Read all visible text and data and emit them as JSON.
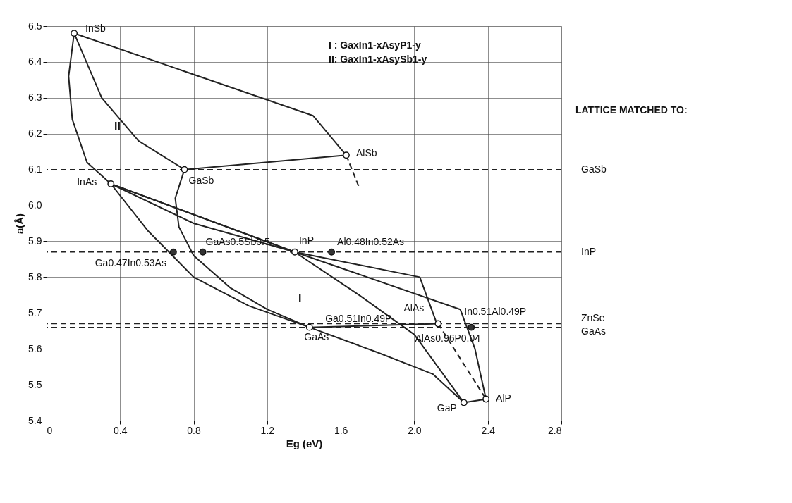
{
  "chart_data": {
    "type": "scatter",
    "xlabel": "Eg (eV)",
    "ylabel": "a(Å)",
    "xlim": [
      0,
      2.8
    ],
    "xticks": [
      0,
      0.4,
      0.8,
      1.2,
      1.6,
      {
        "value": 2.0,
        "label": "2.0"
      },
      2.4,
      2.8
    ],
    "ylim": [
      5.4,
      6.5
    ],
    "yticks": [
      5.4,
      5.5,
      5.6,
      5.7,
      5.8,
      5.9,
      {
        "value": 6.0,
        "label": "6.0"
      },
      6.1,
      6.2,
      6.3,
      6.4,
      6.5
    ],
    "grid": true,
    "series": [
      {
        "type": "line",
        "color": "#222222",
        "x": [
          0.15,
          1.45,
          1.63
        ],
        "values": [
          6.48,
          6.25,
          6.14
        ]
      },
      {
        "type": "line",
        "color": "#222222",
        "x": [
          0.75,
          1.63
        ],
        "values": [
          6.1,
          6.14
        ]
      },
      {
        "type": "line",
        "color": "#222222",
        "line_style": "dashed",
        "x": [
          1.63,
          1.7
        ],
        "values": [
          6.14,
          6.05
        ]
      },
      {
        "type": "line",
        "color": "#222222",
        "x": [
          0.15,
          0.3,
          0.5,
          0.75
        ],
        "values": [
          6.48,
          6.3,
          6.18,
          6.1
        ]
      },
      {
        "type": "line",
        "color": "#222222",
        "x": [
          0.15,
          0.12,
          0.14,
          0.22,
          0.35
        ],
        "values": [
          6.48,
          6.36,
          6.24,
          6.12,
          6.06
        ]
      },
      {
        "type": "line",
        "color": "#222222",
        "x": [
          0.75,
          0.7,
          0.72,
          0.8,
          1.0,
          1.2,
          1.43
        ],
        "values": [
          6.1,
          6.02,
          5.94,
          5.86,
          5.77,
          5.71,
          5.66
        ]
      },
      {
        "type": "line",
        "color": "#222222",
        "x": [
          0.35,
          0.55,
          0.8,
          1.1,
          1.43
        ],
        "values": [
          6.06,
          5.93,
          5.8,
          5.72,
          5.66
        ]
      },
      {
        "type": "line",
        "color": "#222222",
        "x": [
          0.35,
          1.35,
          2.03,
          2.13
        ],
        "values": [
          6.06,
          5.87,
          5.8,
          5.66
        ]
      },
      {
        "type": "line",
        "color": "#222222",
        "x": [
          0.35,
          1.35,
          2.25,
          2.33,
          2.39
        ],
        "values": [
          6.06,
          5.87,
          5.71,
          5.6,
          5.46
        ]
      },
      {
        "type": "line",
        "color": "#222222",
        "x": [
          0.35,
          0.8,
          1.35
        ],
        "values": [
          6.06,
          5.95,
          5.87
        ]
      },
      {
        "type": "line",
        "color": "#222222",
        "x": [
          1.35,
          1.7,
          2.0,
          2.27
        ],
        "values": [
          5.87,
          5.75,
          5.64,
          5.45
        ]
      },
      {
        "type": "line",
        "color": "#222222",
        "x": [
          1.43,
          1.8,
          2.1,
          2.27
        ],
        "values": [
          5.66,
          5.59,
          5.53,
          5.45
        ]
      },
      {
        "type": "line",
        "color": "#222222",
        "x": [
          1.43,
          2.13
        ],
        "values": [
          5.66,
          5.67
        ]
      },
      {
        "type": "line",
        "color": "#222222",
        "line_style": "dashed",
        "x": [
          2.13,
          2.39
        ],
        "values": [
          5.67,
          5.46
        ]
      },
      {
        "type": "line",
        "color": "#222222",
        "x": [
          2.27,
          2.39
        ],
        "values": [
          5.45,
          5.46
        ]
      },
      {
        "color": "#ffffff",
        "marker": "circle",
        "x": [
          0.15,
          1.63,
          0.75,
          0.35,
          1.43,
          2.13,
          2.27,
          2.39,
          1.35
        ],
        "values": [
          6.48,
          6.14,
          6.1,
          6.06,
          5.66,
          5.67,
          5.45,
          5.46,
          5.87
        ]
      },
      {
        "color": "#333333",
        "marker": "circle",
        "x": [
          0.69,
          0.85,
          1.55,
          2.31
        ],
        "values": [
          5.87,
          5.87,
          5.87,
          5.66
        ]
      }
    ],
    "ref_lines": [
      {
        "axis": "y",
        "value": 6.1,
        "label": "GaSb",
        "line_style": "dashed"
      },
      {
        "axis": "y",
        "value": 5.87,
        "label": "InP",
        "line_style": "dashed"
      },
      {
        "axis": "y",
        "value": 5.67,
        "label": "ZnSe",
        "line_style": "dashed"
      },
      {
        "axis": "y",
        "value": 5.66,
        "label": "GaAs",
        "line_style": "dashed"
      }
    ],
    "annotations": [
      {
        "text": "InSb",
        "x": 0.15,
        "y": 6.48
      },
      {
        "text": "AlSb",
        "x": 1.63,
        "y": 6.14
      },
      {
        "text": "GaSb",
        "x": 0.75,
        "y": 6.1
      },
      {
        "text": "InAs",
        "x": 0.35,
        "y": 6.06
      },
      {
        "text": "GaAs0.5Sb0.5",
        "x": 0.85,
        "y": 5.87
      },
      {
        "text": "InP",
        "x": 1.35,
        "y": 5.87
      },
      {
        "text": "Al0.48In0.52As",
        "x": 1.55,
        "y": 5.87
      },
      {
        "text": "Ga0.47In0.53As",
        "x": 0.69,
        "y": 5.87
      },
      {
        "text": "In0.51Al0.49P",
        "x": 2.31,
        "y": 5.66
      },
      {
        "text": "AlAs",
        "x": 2.13,
        "y": 5.67
      },
      {
        "text": "GaAs",
        "x": 1.43,
        "y": 5.66
      },
      {
        "text": "Ga0.51In0.49P",
        "x": 1.9,
        "y": 5.66
      },
      {
        "text": "AlAs0.96P0.04",
        "x": 2.05,
        "y": 5.66
      },
      {
        "text": "GaP",
        "x": 2.27,
        "y": 5.45
      },
      {
        "text": "AlP",
        "x": 2.39,
        "y": 5.46
      },
      "I",
      "II",
      "I : GaxIn1-xAsyP1-y",
      "II: GaxIn1-xAsySb1-y",
      "LATTICE MATCHED TO:"
    ]
  }
}
